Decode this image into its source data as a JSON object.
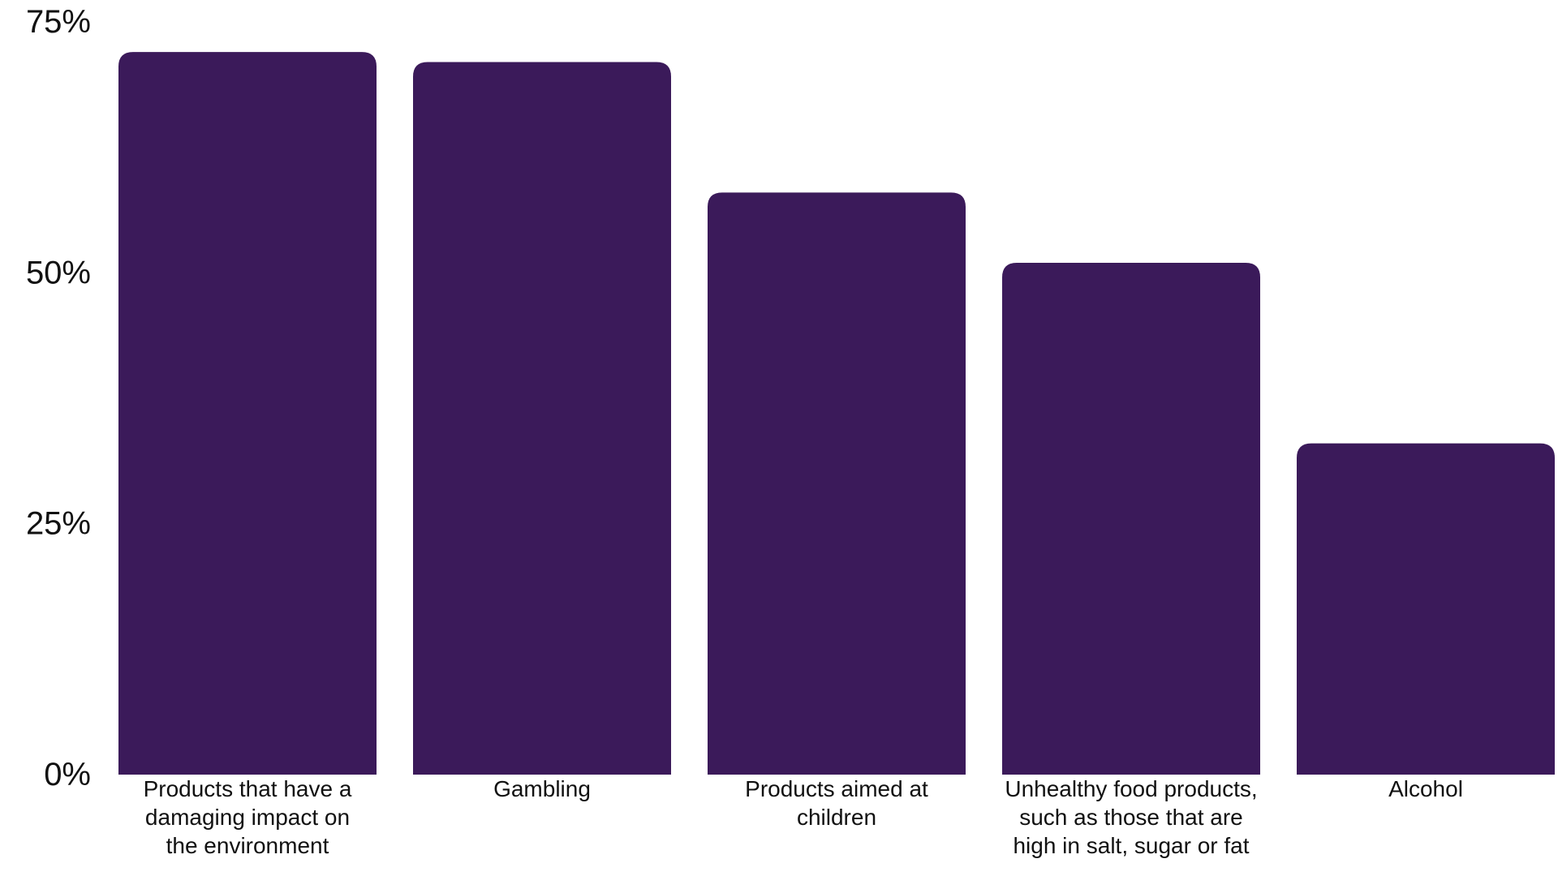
{
  "chart_data": {
    "type": "bar",
    "categories": [
      [
        "Products that have a",
        "damaging impact on",
        "the environment"
      ],
      [
        "Gambling"
      ],
      [
        "Products aimed at",
        "children"
      ],
      [
        "Unhealthy food products,",
        "such as those that are",
        "high in salt, sugar or fat"
      ],
      [
        "Alcohol"
      ]
    ],
    "values": [
      72,
      71,
      58,
      51,
      33
    ],
    "ylim": [
      0,
      75
    ],
    "yticks": [
      0,
      25,
      50,
      75
    ],
    "ytick_labels": [
      "0%",
      "25%",
      "50%",
      "75%"
    ],
    "grid": false,
    "bar_color": "#3b1a5a"
  }
}
